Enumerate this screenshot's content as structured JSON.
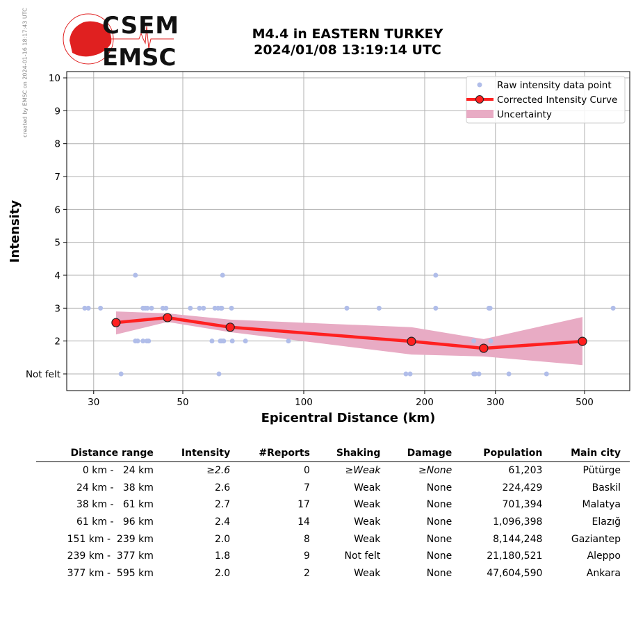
{
  "watermark": "created by EMSC on 2024-01-16 18:17:43 UTC",
  "logo": {
    "line1": "CSEM",
    "line2": "EMSC"
  },
  "header": {
    "title": "M4.4 in EASTERN TURKEY",
    "datetime": "2024/01/08 13:19:14 UTC"
  },
  "colors": {
    "raw": "#b0bde9",
    "curve": "#ff2020",
    "band": "#e8abc4",
    "logo": "#e02020"
  },
  "chart_data": {
    "type": "line",
    "xlabel": "Epicentral Distance (km)",
    "ylabel": "Intensity",
    "xscale": "log",
    "xlim": [
      25.7,
      648
    ],
    "ylim": [
      0.49,
      10.19
    ],
    "xticks": [
      30,
      50,
      100,
      200,
      300,
      500
    ],
    "xtick_labels": [
      "30",
      "50",
      "100",
      "200",
      "300",
      "500"
    ],
    "yticks": [
      1,
      2,
      3,
      4,
      5,
      6,
      7,
      8,
      9,
      10
    ],
    "ytick_labels": [
      "Not felt",
      "2",
      "3",
      "4",
      "5",
      "6",
      "7",
      "8",
      "9",
      "10"
    ],
    "grid": true,
    "legend_position": "top-right",
    "legend": [
      "Raw intensity data point",
      "Corrected Intensity Curve",
      "Uncertainty"
    ],
    "raw_points": [
      [
        38.1,
        4
      ],
      [
        62.8,
        4
      ],
      [
        213,
        4
      ],
      [
        28.5,
        3
      ],
      [
        29.1,
        3
      ],
      [
        31.2,
        3
      ],
      [
        39.8,
        3
      ],
      [
        40.3,
        3
      ],
      [
        40.8,
        3
      ],
      [
        41.8,
        3
      ],
      [
        44.6,
        3
      ],
      [
        45.4,
        3
      ],
      [
        52.2,
        3
      ],
      [
        55.0,
        3
      ],
      [
        56.3,
        3
      ],
      [
        60.1,
        3
      ],
      [
        61.2,
        3
      ],
      [
        62.2,
        3
      ],
      [
        62.5,
        3
      ],
      [
        66.1,
        3
      ],
      [
        128,
        3
      ],
      [
        154,
        3
      ],
      [
        213,
        3
      ],
      [
        289,
        3
      ],
      [
        291,
        3
      ],
      [
        589,
        3
      ],
      [
        38.1,
        2
      ],
      [
        38.6,
        2
      ],
      [
        39.8,
        2
      ],
      [
        40.7,
        2
      ],
      [
        41.1,
        2
      ],
      [
        59.1,
        2
      ],
      [
        62.0,
        2
      ],
      [
        62.5,
        2
      ],
      [
        63.2,
        2
      ],
      [
        66.4,
        2
      ],
      [
        71.6,
        2
      ],
      [
        91.6,
        2
      ],
      [
        265,
        2
      ],
      [
        292,
        2
      ],
      [
        35.1,
        1
      ],
      [
        61.5,
        1
      ],
      [
        179.6,
        1
      ],
      [
        184,
        1
      ],
      [
        265,
        1
      ],
      [
        267,
        1
      ],
      [
        273,
        1
      ],
      [
        324,
        1
      ],
      [
        402,
        1
      ]
    ],
    "curve": {
      "x": [
        34.1,
        45.8,
        65.6,
        185.4,
        280.5,
        494
      ],
      "y": [
        2.56,
        2.71,
        2.42,
        1.99,
        1.78,
        1.99
      ]
    },
    "uncertainty": {
      "upper": [
        2.9,
        2.84,
        2.65,
        2.42,
        2.06,
        2.73
      ],
      "lower": [
        2.2,
        2.58,
        2.27,
        1.59,
        1.53,
        1.27
      ]
    }
  },
  "table": {
    "headers": [
      "Distance range",
      "Intensity",
      "#Reports",
      "Shaking",
      "Damage",
      "Population",
      "Main city"
    ],
    "rows": [
      [
        "0 km -   24 km",
        "≥2.6",
        "0",
        "≥Weak",
        "≥None",
        "61,203",
        "Pütürge"
      ],
      [
        "24 km -   38 km",
        "2.6",
        "7",
        "Weak",
        "None",
        "224,429",
        "Baskil"
      ],
      [
        "38 km -   61 km",
        "2.7",
        "17",
        "Weak",
        "None",
        "701,394",
        "Malatya"
      ],
      [
        "61 km -   96 km",
        "2.4",
        "14",
        "Weak",
        "None",
        "1,096,398",
        "Elazığ"
      ],
      [
        "151 km -  239 km",
        "2.0",
        "8",
        "Weak",
        "None",
        "8,144,248",
        "Gaziantep"
      ],
      [
        "239 km -  377 km",
        "1.8",
        "9",
        "Not felt",
        "None",
        "21,180,521",
        "Aleppo"
      ],
      [
        "377 km -  595 km",
        "2.0",
        "2",
        "Weak",
        "None",
        "47,604,590",
        "Ankara"
      ]
    ]
  }
}
